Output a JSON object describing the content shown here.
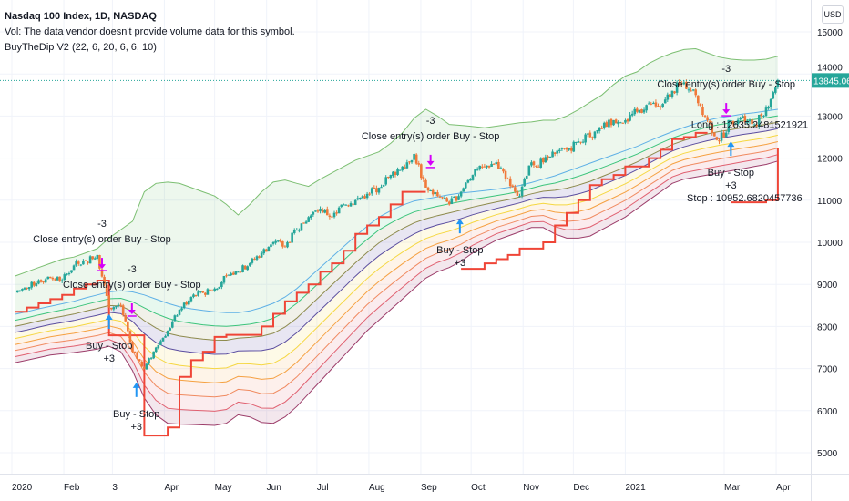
{
  "header": {
    "title": "Nasdaq 100 Index, 1D, NASDAQ",
    "volume_note": "Vol: The data vendor doesn't provide volume data for this symbol.",
    "indicator": "BuyTheDip V2 (22, 6, 20, 6, 6, 10)"
  },
  "price_axis": {
    "currency": "USD",
    "last_price": "13845.06"
  },
  "colors": {
    "up": "#26a69a",
    "down": "#f0793a",
    "last_price": "#26a69a",
    "stop_line": "#ef4537",
    "close_arrow": "#d500f9",
    "buy_arrow": "#2196f3"
  },
  "chart_data": {
    "type": "candlestick",
    "title": "Nasdaq 100 Index, 1D, NASDAQ",
    "start_date": "2020-01-03",
    "step_days": 7,
    "y_ticks": [
      5000,
      6000,
      7000,
      8000,
      9000,
      10000,
      11000,
      12000,
      13000,
      14000,
      15000
    ],
    "ylim": [
      4500,
      15400
    ],
    "x_ticks": [
      {
        "label": "2020",
        "date": "2020-01-01"
      },
      {
        "label": "Feb",
        "date": "2020-02-01"
      },
      {
        "label": "3",
        "date": "2020-03-01"
      },
      {
        "label": "Apr",
        "date": "2020-04-01"
      },
      {
        "label": "May",
        "date": "2020-05-01"
      },
      {
        "label": "Jun",
        "date": "2020-06-01"
      },
      {
        "label": "Jul",
        "date": "2020-07-01"
      },
      {
        "label": "Aug",
        "date": "2020-08-01"
      },
      {
        "label": "Sep",
        "date": "2020-09-01"
      },
      {
        "label": "Oct",
        "date": "2020-10-01"
      },
      {
        "label": "Nov",
        "date": "2020-11-01"
      },
      {
        "label": "Dec",
        "date": "2020-12-01"
      },
      {
        "label": "2021",
        "date": "2021-01-01"
      },
      {
        "label": "Mar",
        "date": "2021-03-01"
      },
      {
        "label": "Apr",
        "date": "2021-04-01"
      }
    ],
    "close": [
      8850,
      8900,
      9100,
      9150,
      9100,
      9450,
      9550,
      9700,
      8450,
      8500,
      7400,
      6990,
      7500,
      7900,
      8400,
      8700,
      8800,
      8900,
      9200,
      9300,
      9500,
      9750,
      10000,
      9900,
      10300,
      10600,
      10800,
      10600,
      10900,
      11000,
      11150,
      11300,
      11600,
      11800,
      12100,
      11300,
      11100,
      10900,
      11200,
      11600,
      11800,
      11900,
      11500,
      11100,
      11900,
      11900,
      12100,
      12200,
      12400,
      12500,
      12700,
      12900,
      12900,
      13100,
      13300,
      13200,
      13600,
      13800,
      13500,
      12900,
      12400,
      12900,
      13000,
      12800,
      13200,
      13845.06
    ],
    "upper_band": [
      9200,
      9300,
      9400,
      9500,
      9600,
      9650,
      9750,
      9850,
      10100,
      10300,
      10500,
      11200,
      11400,
      11430,
      11400,
      11300,
      11200,
      11100,
      10900,
      10650,
      10900,
      11200,
      11430,
      11480,
      11400,
      11330,
      11500,
      11650,
      11800,
      11950,
      12050,
      12150,
      12350,
      12600,
      12950,
      13160,
      13000,
      12800,
      12780,
      12750,
      12720,
      12760,
      12800,
      12840,
      12860,
      12900,
      12900,
      13000,
      13150,
      13330,
      13500,
      13750,
      13950,
      14050,
      14250,
      14390,
      14500,
      14580,
      14600,
      14500,
      14400,
      14350,
      14330,
      14330,
      14350,
      14420
    ],
    "basis": [
      8290,
      8350,
      8420,
      8480,
      8540,
      8600,
      8680,
      8750,
      8820,
      8850,
      8820,
      8750,
      8650,
      8550,
      8470,
      8420,
      8380,
      8350,
      8330,
      8330,
      8370,
      8450,
      8550,
      8700,
      8900,
      9150,
      9400,
      9650,
      9900,
      10150,
      10380,
      10600,
      10750,
      10880,
      10980,
      11030,
      11080,
      11130,
      11170,
      11200,
      11230,
      11260,
      11300,
      11350,
      11420,
      11500,
      11580,
      11680,
      11780,
      11880,
      11980,
      12080,
      12180,
      12280,
      12400,
      12520,
      12630,
      12730,
      12820,
      12900,
      12960,
      13000,
      13050,
      13080,
      13120,
      13160
    ],
    "lower_band": [
      7140,
      7200,
      7260,
      7320,
      7350,
      7380,
      7420,
      7460,
      7530,
      7400,
      6950,
      6300,
      5900,
      5700,
      5680,
      5670,
      5660,
      5650,
      5700,
      5900,
      5850,
      5720,
      5700,
      5850,
      6100,
      6400,
      6700,
      7000,
      7300,
      7600,
      7900,
      8150,
      8400,
      8650,
      8900,
      9150,
      9300,
      9400,
      9550,
      9750,
      9900,
      10050,
      10150,
      10250,
      10350,
      10350,
      10200,
      10100,
      10100,
      10150,
      10300,
      10450,
      10600,
      10800,
      11000,
      11200,
      11400,
      11500,
      11550,
      11600,
      11650,
      11700,
      11750,
      11800,
      11850,
      11930
    ],
    "stop_line": [
      8350,
      8450,
      8550,
      8650,
      8750,
      8900,
      9000,
      9090,
      7790,
      7790,
      7790,
      5410,
      5410,
      5600,
      6800,
      7200,
      7400,
      7750,
      7800,
      7800,
      7800,
      8000,
      8300,
      8600,
      8800,
      9000,
      9300,
      9500,
      9800,
      10200,
      10400,
      10600,
      10900,
      11200,
      11200,
      11200,
      null,
      null,
      9370,
      9370,
      9500,
      9600,
      9700,
      9850,
      9850,
      10000,
      10400,
      10700,
      11000,
      11360,
      11500,
      11600,
      11800,
      11800,
      12000,
      12200,
      12450,
      12500,
      12600,
      12600,
      null,
      10950,
      10950,
      10950,
      11000,
      12230
    ],
    "signals": [
      {
        "type": "close",
        "i": 7.4,
        "price": 9630,
        "qty": "-3",
        "label": "Close entry(s) order Buy - Stop"
      },
      {
        "type": "close",
        "i": 9.95,
        "price": 8550,
        "qty": "-3",
        "label": "Close entry(s) order Buy - Stop"
      },
      {
        "type": "buy",
        "i": 8.0,
        "price": 8290,
        "qty": "+3",
        "label": "Buy - Stop"
      },
      {
        "type": "buy",
        "i": 10.33,
        "price": 6670,
        "qty": "+3",
        "label": "Buy - Stop"
      },
      {
        "type": "close",
        "i": 35.4,
        "price": 12080,
        "qty": "-3",
        "label": "Close entry(s) order Buy - Stop"
      },
      {
        "type": "buy",
        "i": 37.9,
        "price": 10560,
        "qty": "+3",
        "label": "Buy - Stop"
      },
      {
        "type": "close",
        "i": 60.6,
        "price": 13310,
        "qty": "-3",
        "label": "Close entry(s) order Buy - Stop"
      },
      {
        "type": "buy",
        "i": 61.0,
        "price": 12400,
        "qty": "+3",
        "label": "Buy - Stop",
        "extra": "Stop : 10952.6820457736"
      }
    ],
    "labels": [
      {
        "i": 62.6,
        "price": 12720,
        "text": "Long : 12635.2481521921"
      }
    ]
  }
}
